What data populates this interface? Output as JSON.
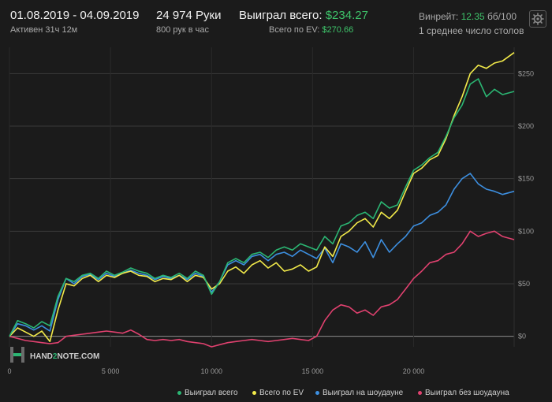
{
  "header": {
    "date_range": "01.08.2019 - 04.09.2019",
    "active_time": "Активен 31ч 12м",
    "hands": "24 974 Руки",
    "hands_per_hour": "800 рук в час",
    "won_label": "Выиграл всего:",
    "won_value": "$234.27",
    "ev_label": "Всего по EV:",
    "ev_value": "$270.66",
    "winrate_label": "Винрейт:",
    "winrate_value": "12.35",
    "winrate_unit": "бб/100",
    "tables": "1 среднее число столов"
  },
  "watermark": {
    "brand_prefix": "HAND",
    "brand_digit": "2",
    "brand_suffix": "NOTE.COM"
  },
  "icons": {
    "settings": "gear-icon",
    "logo": "hand2note-logo-icon"
  },
  "colors": {
    "background": "#1b1b1b",
    "won_total": "#2bb673",
    "ev_total": "#f2ea4a",
    "showdown": "#3d8fe0",
    "non_showdown": "#e0416f",
    "accent_green": "#3ec36a"
  },
  "chart_data": {
    "type": "line",
    "xlim": [
      0,
      24974
    ],
    "ylim": [
      -10,
      275
    ],
    "x_ticks": [
      "0",
      "5 000",
      "10 000",
      "15 000",
      "20 000"
    ],
    "y_ticks": [
      "$0",
      "$50",
      "$100",
      "$150",
      "$200",
      "$250"
    ],
    "x_tick_values": [
      0,
      5000,
      10000,
      15000,
      20000
    ],
    "y_tick_values": [
      0,
      50,
      100,
      150,
      200,
      250
    ],
    "grid": true,
    "legend_position": "bottom-right",
    "series": [
      {
        "name": "Выиграл всего",
        "color": "#2bb673",
        "x": [
          0,
          400,
          800,
          1200,
          1600,
          2000,
          2400,
          2800,
          3200,
          3600,
          4000,
          4400,
          4800,
          5200,
          5600,
          6000,
          6400,
          6800,
          7200,
          7600,
          8000,
          8400,
          8800,
          9200,
          9600,
          10000,
          10400,
          10800,
          11200,
          11600,
          12000,
          12400,
          12800,
          13200,
          13600,
          14000,
          14400,
          14800,
          15200,
          15600,
          16000,
          16400,
          16800,
          17200,
          17600,
          18000,
          18400,
          18800,
          19200,
          19600,
          20000,
          20400,
          20800,
          21200,
          21600,
          22000,
          22400,
          22800,
          23200,
          23600,
          24000,
          24400,
          24974
        ],
        "y": [
          0,
          15,
          12,
          8,
          14,
          10,
          38,
          55,
          52,
          58,
          60,
          55,
          62,
          58,
          61,
          65,
          62,
          60,
          55,
          58,
          56,
          60,
          55,
          62,
          58,
          40,
          52,
          70,
          74,
          70,
          78,
          80,
          75,
          82,
          85,
          82,
          88,
          85,
          82,
          95,
          88,
          105,
          108,
          115,
          118,
          112,
          128,
          122,
          125,
          142,
          158,
          163,
          170,
          175,
          190,
          208,
          220,
          240,
          245,
          228,
          235,
          230,
          233
        ]
      },
      {
        "name": "Всего по EV",
        "color": "#f2ea4a",
        "x": [
          0,
          400,
          800,
          1200,
          1600,
          2000,
          2400,
          2800,
          3200,
          3600,
          4000,
          4400,
          4800,
          5200,
          5600,
          6000,
          6400,
          6800,
          7200,
          7600,
          8000,
          8400,
          8800,
          9200,
          9600,
          10000,
          10400,
          10800,
          11200,
          11600,
          12000,
          12400,
          12800,
          13200,
          13600,
          14000,
          14400,
          14800,
          15200,
          15600,
          16000,
          16400,
          16800,
          17200,
          17600,
          18000,
          18400,
          18800,
          19200,
          19600,
          20000,
          20400,
          20800,
          21200,
          21600,
          22000,
          22400,
          22800,
          23200,
          23600,
          24000,
          24400,
          24974
        ],
        "y": [
          0,
          8,
          4,
          0,
          5,
          -5,
          25,
          50,
          48,
          55,
          58,
          52,
          58,
          56,
          60,
          62,
          58,
          57,
          52,
          55,
          54,
          58,
          52,
          58,
          56,
          45,
          50,
          62,
          66,
          60,
          68,
          72,
          65,
          70,
          62,
          64,
          68,
          62,
          66,
          85,
          76,
          95,
          100,
          108,
          112,
          104,
          118,
          112,
          120,
          138,
          155,
          160,
          168,
          172,
          188,
          210,
          228,
          250,
          258,
          255,
          260,
          262,
          270
        ]
      },
      {
        "name": "Выиграл на шоудауне",
        "color": "#3d8fe0",
        "x": [
          0,
          400,
          800,
          1200,
          1600,
          2000,
          2400,
          2800,
          3200,
          3600,
          4000,
          4400,
          4800,
          5200,
          5600,
          6000,
          6400,
          6800,
          7200,
          7600,
          8000,
          8400,
          8800,
          9200,
          9600,
          10000,
          10400,
          10800,
          11200,
          11600,
          12000,
          12400,
          12800,
          13200,
          13600,
          14000,
          14400,
          14800,
          15200,
          15600,
          16000,
          16400,
          16800,
          17200,
          17600,
          18000,
          18400,
          18800,
          19200,
          19600,
          20000,
          20400,
          20800,
          21200,
          21600,
          22000,
          22400,
          22800,
          23200,
          23600,
          24000,
          24400,
          24974
        ],
        "y": [
          0,
          12,
          10,
          6,
          10,
          5,
          35,
          55,
          50,
          57,
          59,
          54,
          60,
          57,
          60,
          63,
          60,
          58,
          54,
          57,
          55,
          58,
          54,
          60,
          57,
          42,
          52,
          68,
          72,
          68,
          76,
          78,
          72,
          78,
          80,
          76,
          82,
          78,
          74,
          84,
          70,
          88,
          85,
          80,
          90,
          75,
          92,
          80,
          88,
          95,
          105,
          108,
          115,
          118,
          125,
          140,
          150,
          155,
          145,
          140,
          138,
          135,
          138
        ]
      },
      {
        "name": "Выиграл без шоудауна",
        "color": "#e0416f",
        "x": [
          0,
          400,
          800,
          1200,
          1600,
          2000,
          2400,
          2800,
          3200,
          3600,
          4000,
          4400,
          4800,
          5200,
          5600,
          6000,
          6400,
          6800,
          7200,
          7600,
          8000,
          8400,
          8800,
          9200,
          9600,
          10000,
          10400,
          10800,
          11200,
          11600,
          12000,
          12400,
          12800,
          13200,
          13600,
          14000,
          14400,
          14800,
          15200,
          15600,
          16000,
          16400,
          16800,
          17200,
          17600,
          18000,
          18400,
          18800,
          19200,
          19600,
          20000,
          20400,
          20800,
          21200,
          21600,
          22000,
          22400,
          22800,
          23200,
          23600,
          24000,
          24400,
          24974
        ],
        "y": [
          0,
          -2,
          -4,
          -5,
          -6,
          -7,
          -6,
          0,
          1,
          2,
          3,
          4,
          5,
          4,
          3,
          6,
          2,
          -3,
          -4,
          -3,
          -4,
          -3,
          -5,
          -6,
          -7,
          -10,
          -8,
          -6,
          -5,
          -4,
          -3,
          -4,
          -5,
          -4,
          -3,
          -2,
          -3,
          -4,
          0,
          15,
          25,
          30,
          28,
          22,
          25,
          20,
          28,
          30,
          35,
          45,
          55,
          62,
          70,
          72,
          78,
          80,
          88,
          100,
          95,
          98,
          100,
          95,
          92
        ]
      }
    ]
  }
}
